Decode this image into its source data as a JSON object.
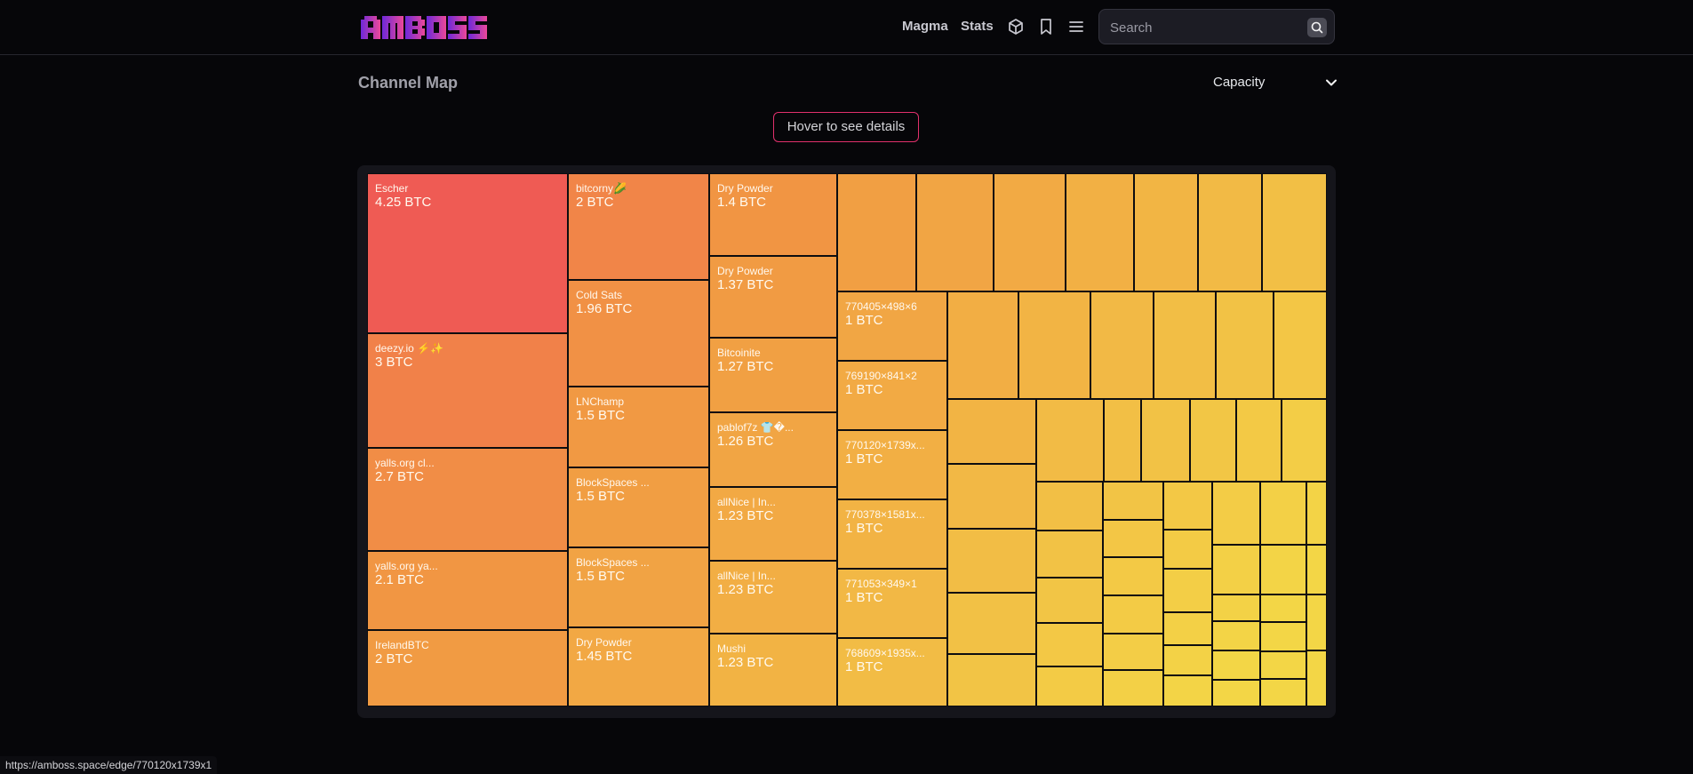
{
  "header": {
    "logo_text": "AMBOSS",
    "nav": [
      "Magma",
      "Stats"
    ],
    "icons": [
      "cube-icon",
      "bookmark-icon",
      "menu-icon"
    ],
    "search_placeholder": "Search"
  },
  "page": {
    "title": "Channel Map",
    "metric_select": "Capacity",
    "hover_hint": "Hover to see details"
  },
  "status_url": "https://amboss.space/edge/770120x1739x1",
  "colors": {
    "background": "#060609",
    "accent_border": "#e1306c",
    "logo_left": "#6d28d9",
    "logo_right": "#ec4899"
  },
  "treemap": {
    "named_channels": [
      {
        "name": "Escher",
        "capacity": "4.25 BTC"
      },
      {
        "name": "deezy.io ⚡✨",
        "capacity": "3 BTC"
      },
      {
        "name": "yalls.org cl...",
        "capacity": "2.7 BTC"
      },
      {
        "name": "yalls.org ya...",
        "capacity": "2.1 BTC"
      },
      {
        "name": "IrelandBTC",
        "capacity": "2 BTC"
      },
      {
        "name": "bitcorny🌽",
        "capacity": "2 BTC"
      },
      {
        "name": "Cold Sats",
        "capacity": "1.96 BTC"
      },
      {
        "name": "LNChamp",
        "capacity": "1.5 BTC"
      },
      {
        "name": "BlockSpaces ...",
        "capacity": "1.5 BTC"
      },
      {
        "name": "BlockSpaces ...",
        "capacity": "1.5 BTC"
      },
      {
        "name": "Dry Powder",
        "capacity": "1.45 BTC"
      },
      {
        "name": "Dry Powder",
        "capacity": "1.4 BTC"
      },
      {
        "name": "Dry Powder",
        "capacity": "1.37 BTC"
      },
      {
        "name": "Bitcoinite",
        "capacity": "1.27 BTC"
      },
      {
        "name": "pablof7z 👕�...",
        "capacity": "1.26 BTC"
      },
      {
        "name": "allNice | In...",
        "capacity": "1.23 BTC"
      },
      {
        "name": "allNice | In...",
        "capacity": "1.23 BTC"
      },
      {
        "name": "Mushi",
        "capacity": "1.23 BTC"
      },
      {
        "name": "770405×498×6",
        "capacity": "1 BTC"
      },
      {
        "name": "769190×841×2",
        "capacity": "1 BTC"
      },
      {
        "name": "770120×1739x...",
        "capacity": "1 BTC"
      },
      {
        "name": "770378×1581x...",
        "capacity": "1 BTC"
      },
      {
        "name": "771053×349×1",
        "capacity": "1 BTC"
      },
      {
        "name": "768609×1935x...",
        "capacity": "1 BTC"
      }
    ]
  }
}
